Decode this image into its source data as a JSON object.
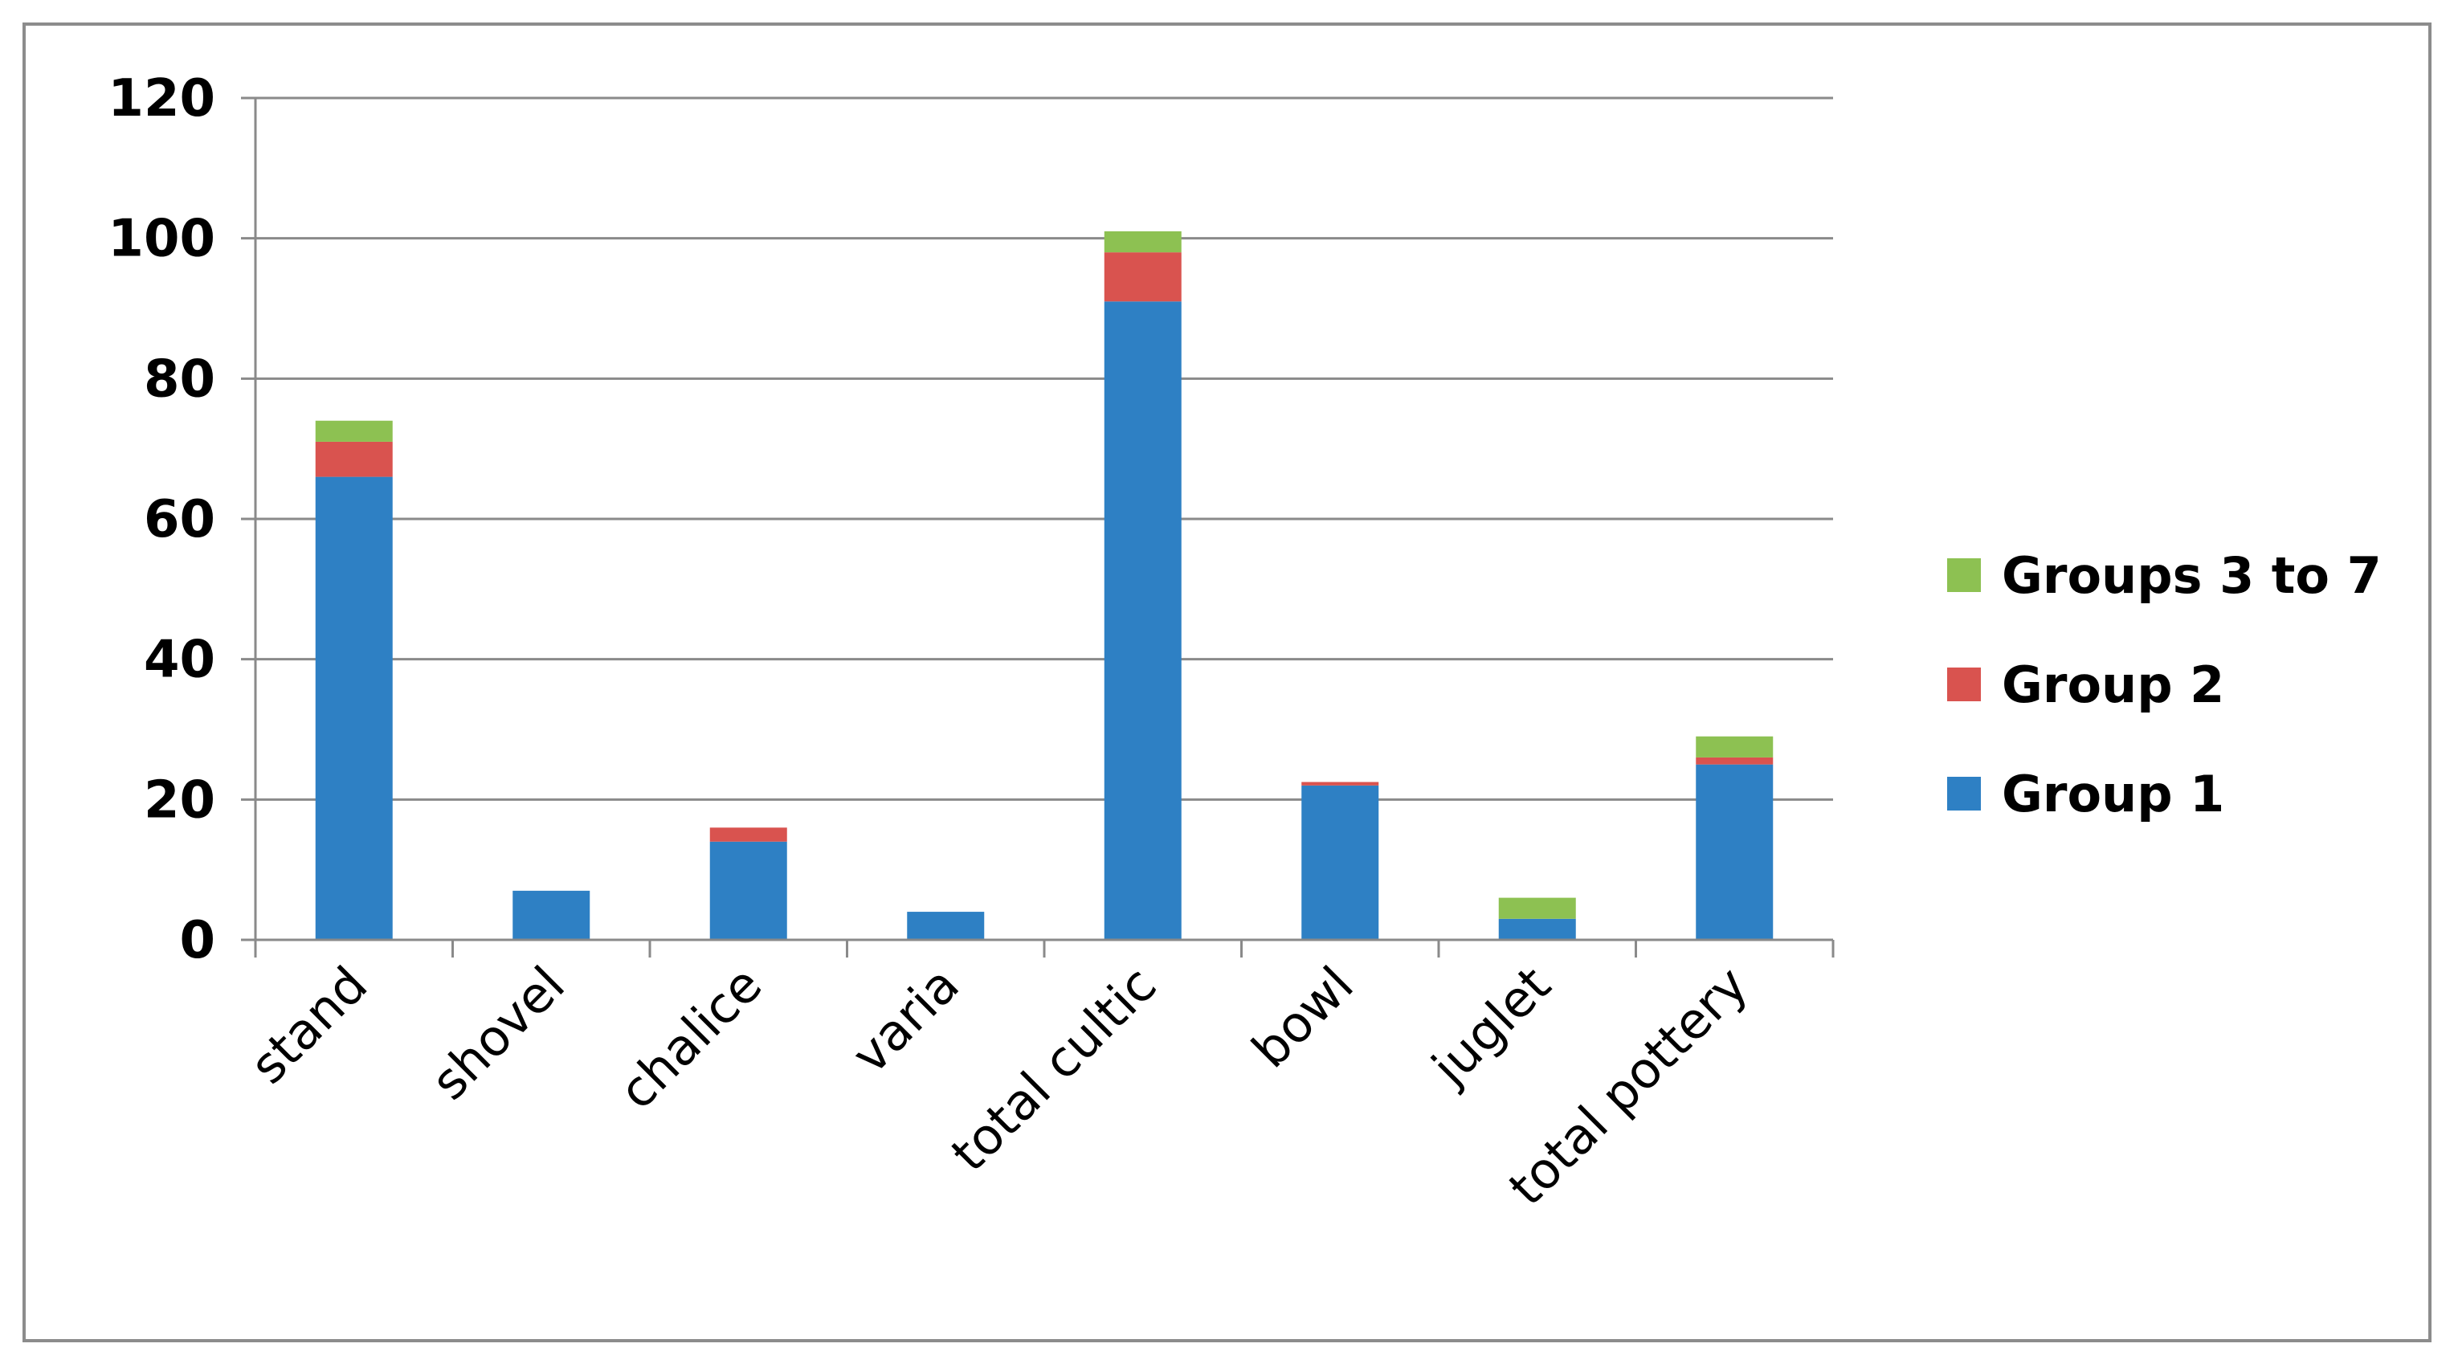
{
  "chart_data": {
    "type": "bar",
    "stacked": true,
    "title": "",
    "xlabel": "",
    "ylabel": "",
    "ylim": [
      0,
      120
    ],
    "yticks": [
      0,
      20,
      40,
      60,
      80,
      100,
      120
    ],
    "grid": true,
    "legend_position": "right",
    "categories": [
      "stand",
      "shovel",
      "chalice",
      "varia",
      "total cultic",
      "bowl",
      "juglet",
      "total pottery"
    ],
    "series": [
      {
        "name": "Group 1",
        "color": "#2e80c4",
        "values": [
          66,
          7,
          14,
          4,
          91,
          22,
          3,
          25
        ]
      },
      {
        "name": "Group 2",
        "color": "#d9534f",
        "values": [
          5,
          0,
          2,
          0,
          7,
          0.5,
          0,
          1
        ]
      },
      {
        "name": "Groups 3 to 7",
        "color": "#8dc152",
        "values": [
          3,
          0,
          0,
          0,
          3,
          0,
          3,
          3
        ]
      }
    ],
    "legend_order": [
      "Groups 3 to 7",
      "Group 2",
      "Group 1"
    ]
  }
}
